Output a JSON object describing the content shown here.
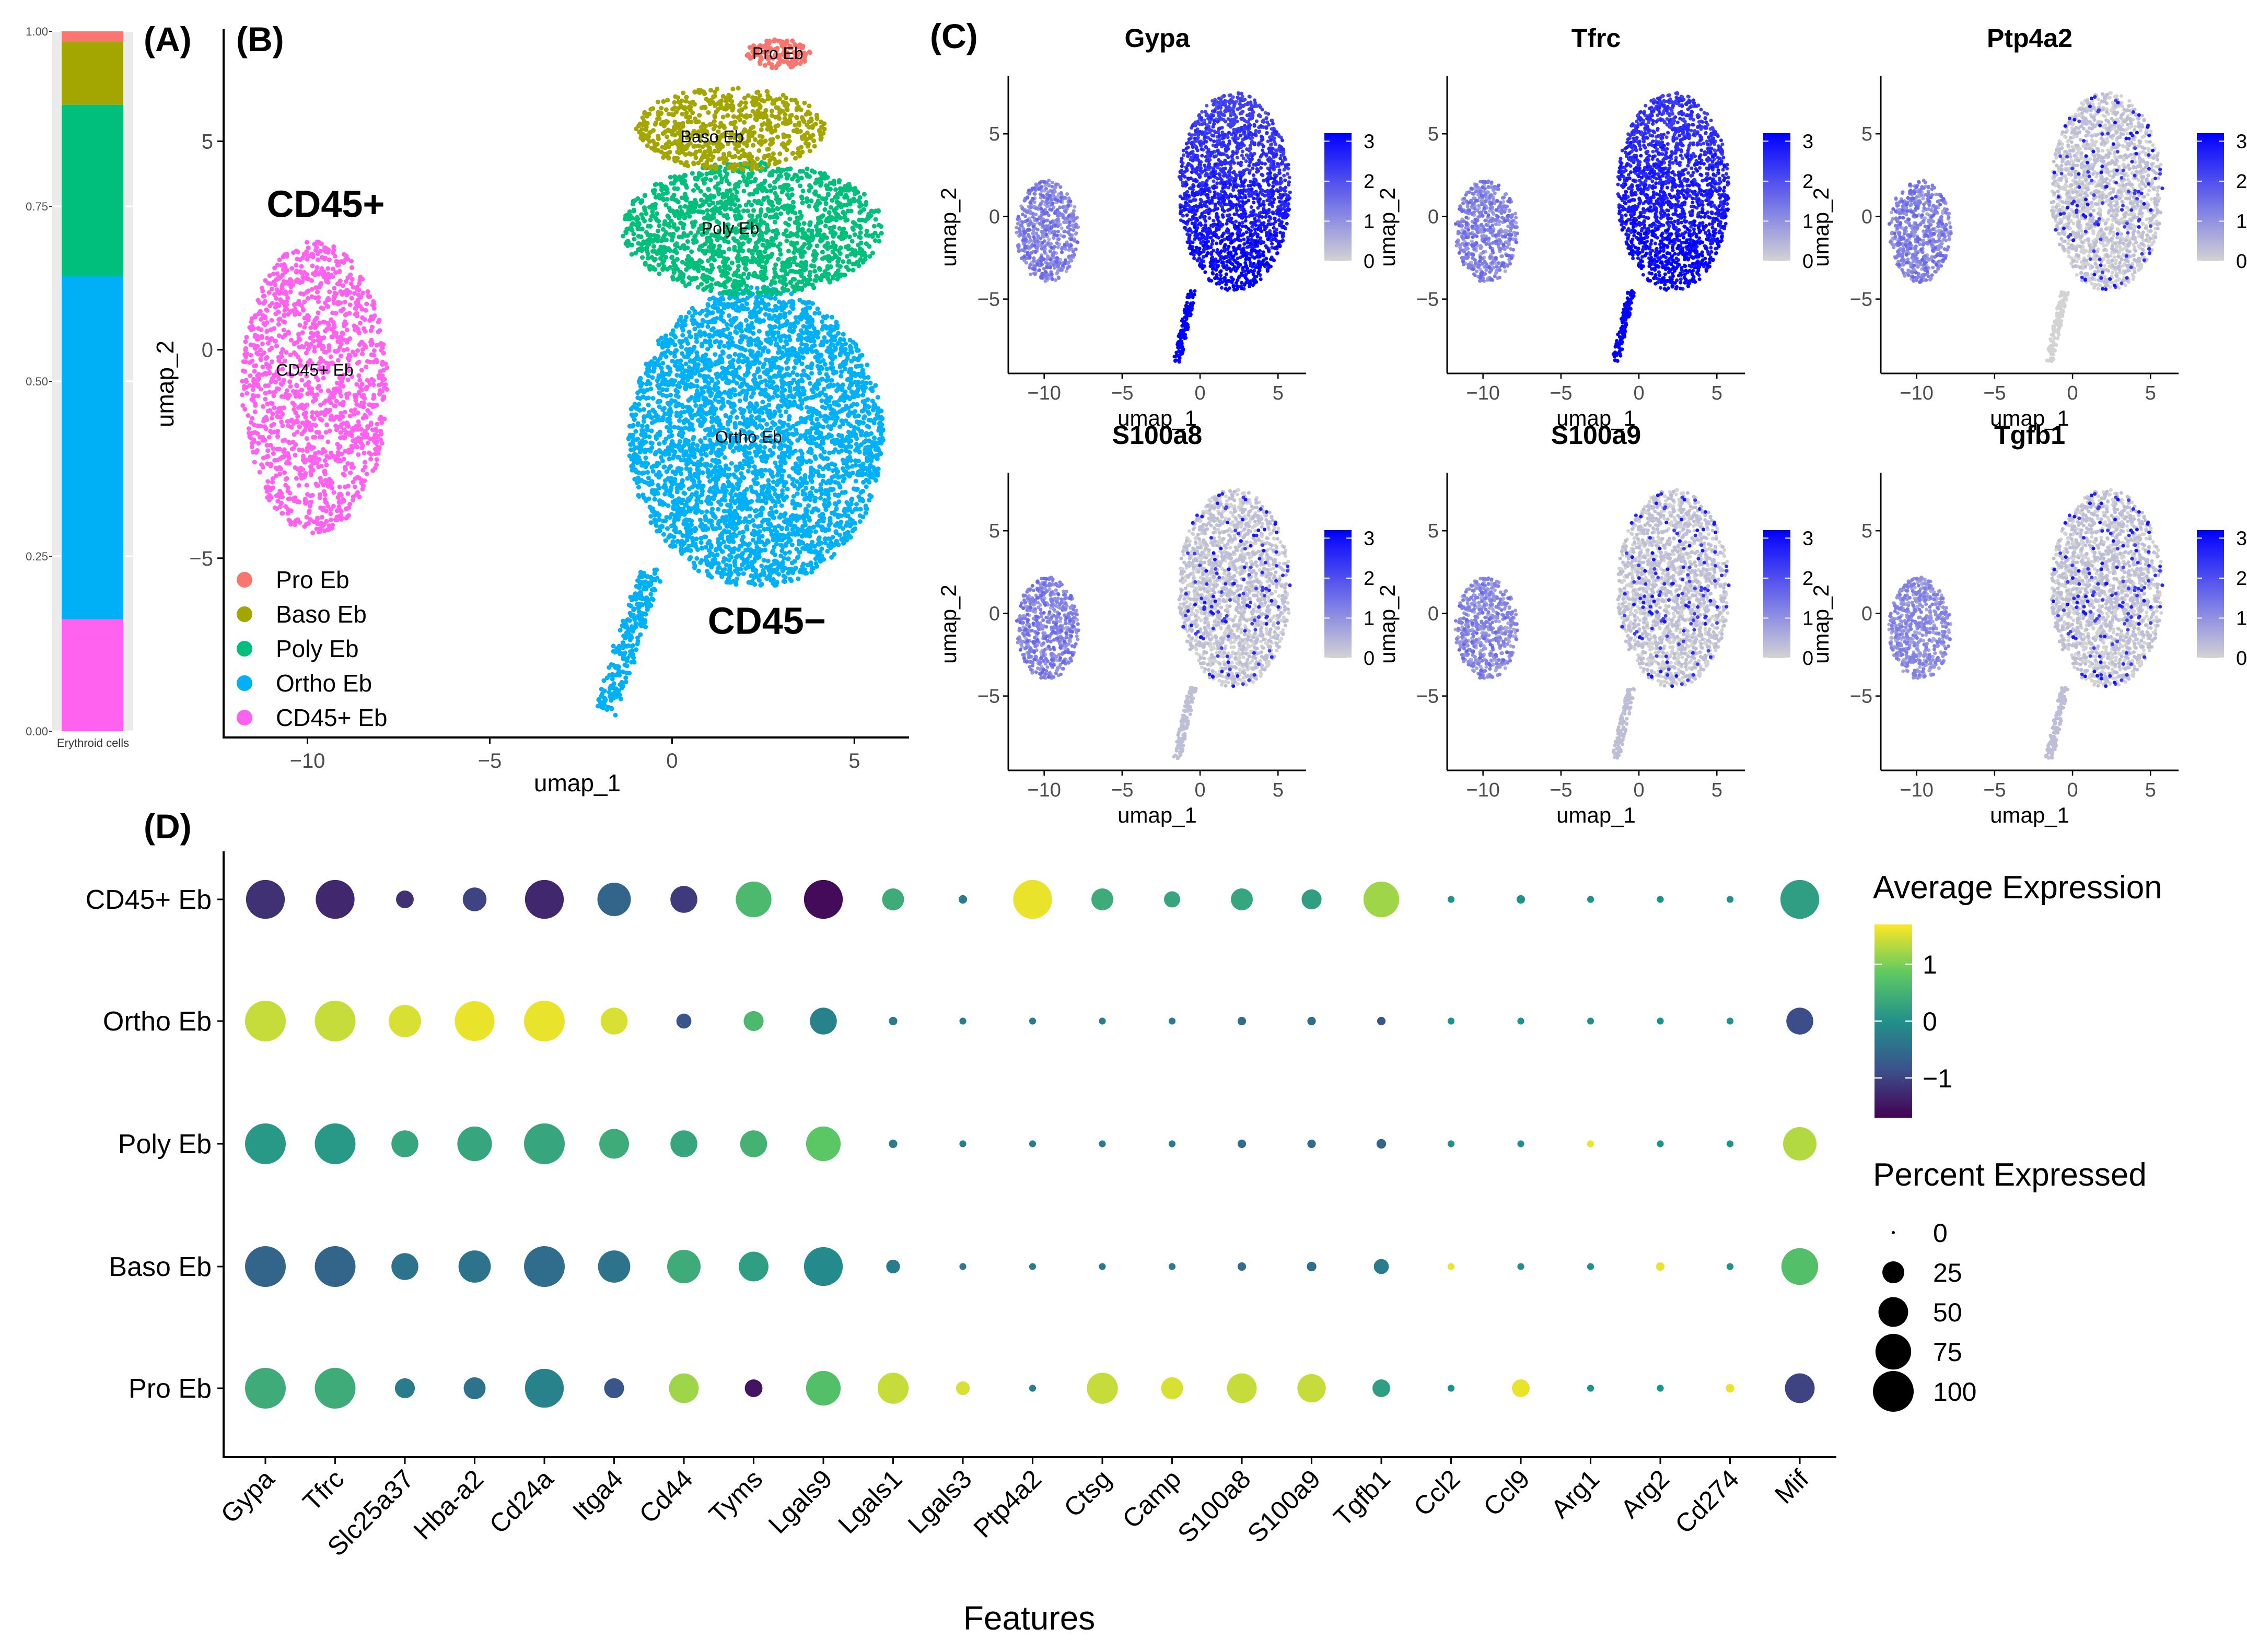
{
  "panel_labels": {
    "a": "(A)",
    "b": "(B)",
    "c": "(C)",
    "d": "(D)"
  },
  "colors": {
    "Pro Eb": "#F8766D",
    "Baso Eb": "#A3A500",
    "Poly Eb": "#00BF7D",
    "Ortho Eb": "#00B0F6",
    "CD45+ Eb": "#FF62EF",
    "feature_low": "#D3D3D3",
    "feature_high": "#0000FF"
  },
  "chart_data": [
    {
      "id": "A",
      "type": "bar",
      "stacked": true,
      "categories": [
        "Erythroid cells"
      ],
      "series": [
        {
          "name": "CD45+ Eb",
          "values": [
            0.16
          ]
        },
        {
          "name": "Ortho Eb",
          "values": [
            0.49
          ]
        },
        {
          "name": "Poly Eb",
          "values": [
            0.245
          ]
        },
        {
          "name": "Baso Eb",
          "values": [
            0.09
          ]
        },
        {
          "name": "Pro Eb",
          "values": [
            0.015
          ]
        }
      ],
      "ylim": [
        0,
        1
      ],
      "yticks": [
        "0.00",
        "0.25",
        "0.50",
        "0.75",
        "1.00"
      ],
      "yticks_values": [
        0,
        0.25,
        0.5,
        0.75,
        1.0
      ],
      "xlabel": "Erythroid cells"
    },
    {
      "id": "B",
      "type": "scatter",
      "title": "",
      "xlabel": "umap_1",
      "ylabel": "umap_2",
      "xlim": [
        -12.3,
        6.5
      ],
      "ylim": [
        -9.3,
        7.7
      ],
      "xticks": [
        -10,
        -5,
        0,
        5
      ],
      "xtick_labels": [
        "−10",
        "−5",
        "0",
        "5"
      ],
      "yticks": [
        -5,
        0,
        5
      ],
      "ytick_labels": [
        "−5",
        "0",
        "5"
      ],
      "legend": [
        "Pro Eb",
        "Baso Eb",
        "Poly Eb",
        "Ortho Eb",
        "CD45+ Eb"
      ],
      "legend_position": "bottom-left",
      "cluster_labels": [
        {
          "text": "Pro Eb",
          "x": 2.9,
          "y": 7.1
        },
        {
          "text": "Baso Eb",
          "x": 1.1,
          "y": 5.1
        },
        {
          "text": "Poly Eb",
          "x": 1.6,
          "y": 2.9
        },
        {
          "text": "Ortho Eb",
          "x": 2.1,
          "y": -2.1
        },
        {
          "text": "CD45+ Eb",
          "x": -9.8,
          "y": -0.5
        }
      ],
      "annotations": [
        {
          "text": "CD45+",
          "x": -9.5,
          "y": 3.5
        },
        {
          "text": "CD45−",
          "x": 2.6,
          "y": -6.5
        }
      ],
      "clusters": [
        {
          "name": "CD45+ Eb",
          "cx": -9.8,
          "cy": -0.9,
          "rx": 2.0,
          "ry": 3.5,
          "n": 1400
        },
        {
          "name": "Ortho Eb",
          "cx": 2.3,
          "cy": -2.1,
          "rx": 3.5,
          "ry": 3.6,
          "n": 3600
        },
        {
          "name": "Poly Eb",
          "cx": 2.2,
          "cy": 2.9,
          "rx": 3.6,
          "ry": 1.6,
          "n": 1500
        },
        {
          "name": "Baso Eb",
          "cx": 1.6,
          "cy": 5.3,
          "rx": 2.6,
          "ry": 1.0,
          "n": 650
        },
        {
          "name": "Pro Eb",
          "cx": 2.9,
          "cy": 7.1,
          "rx": 0.9,
          "ry": 0.35,
          "n": 140
        }
      ]
    },
    {
      "id": "C",
      "type": "scatter",
      "subtype": "feature_plot",
      "xlabel": "umap_1",
      "ylabel": "umap_2",
      "xlim": [
        -12.3,
        6.8
      ],
      "ylim": [
        -9.5,
        8.2
      ],
      "xticks": [
        -10,
        -5,
        0,
        5
      ],
      "xtick_labels": [
        "−10",
        "−5",
        "0",
        "5"
      ],
      "yticks": [
        -5,
        0,
        5
      ],
      "ytick_labels": [
        "−5",
        "0",
        "5"
      ],
      "colorbar_ticks": [
        0,
        1,
        2,
        3
      ],
      "colorbar_range": [
        0,
        3.2
      ],
      "features": [
        {
          "name": "Gypa",
          "left_level": 0.35,
          "right_level": 0.65,
          "bottom_boost": 0.35
        },
        {
          "name": "Tfrc",
          "left_level": 0.35,
          "right_level": 0.7,
          "bottom_boost": 0.3
        },
        {
          "name": "Ptp4a2",
          "left_level": 0.35,
          "right_level": 0.04,
          "bottom_boost": 0
        },
        {
          "name": "S100a8",
          "left_level": 0.35,
          "right_level": 0.05,
          "bottom_boost": 0
        },
        {
          "name": "S100a9",
          "left_level": 0.32,
          "right_level": 0.05,
          "bottom_boost": 0
        },
        {
          "name": "Tgfb1",
          "left_level": 0.3,
          "right_level": 0.05,
          "bottom_boost": 0
        }
      ]
    },
    {
      "id": "D",
      "type": "dot",
      "xlabel": "Features",
      "ylabel": "",
      "features": [
        "Gypa",
        "Tfrc",
        "Slc25a37",
        "Hba-a2",
        "Cd24a",
        "Itga4",
        "Cd44",
        "Tyms",
        "Lgals9",
        "Lgals1",
        "Lgals3",
        "Ptp4a2",
        "Ctsg",
        "Camp",
        "S100a8",
        "S100a9",
        "Tgfb1",
        "Ccl2",
        "Ccl9",
        "Arg1",
        "Arg2",
        "Cd274",
        "Mif"
      ],
      "groups": [
        "CD45+ Eb",
        "Ortho Eb",
        "Poly Eb",
        "Baso Eb",
        "Pro Eb"
      ],
      "avg_expression": [
        [
          -1.2,
          -1.3,
          -1.2,
          -1.0,
          -1.3,
          -0.6,
          -1.1,
          0.6,
          -1.6,
          0.4,
          -0.3,
          1.6,
          0.4,
          0.3,
          0.3,
          0.2,
          1.2,
          0,
          0,
          0,
          0,
          0,
          0.2
        ],
        [
          1.4,
          1.4,
          1.5,
          1.6,
          1.6,
          1.5,
          -0.8,
          0.6,
          -0.2,
          -0.3,
          -0.3,
          -0.3,
          -0.3,
          -0.3,
          -0.5,
          -0.5,
          -0.8,
          0,
          0,
          0,
          0,
          0,
          -0.9
        ],
        [
          0.1,
          0.1,
          0.3,
          0.3,
          0.3,
          0.4,
          0.3,
          0.5,
          0.8,
          -0.3,
          -0.3,
          -0.3,
          -0.3,
          -0.3,
          -0.5,
          -0.5,
          -0.6,
          0,
          0,
          1.6,
          0,
          0,
          1.3
        ],
        [
          -0.6,
          -0.6,
          -0.4,
          -0.4,
          -0.5,
          -0.4,
          0.4,
          0.2,
          -0.1,
          -0.3,
          -0.3,
          -0.3,
          -0.3,
          -0.3,
          -0.5,
          -0.5,
          -0.3,
          1.6,
          0,
          0,
          1.6,
          0,
          0.7
        ],
        [
          0.4,
          0.4,
          -0.3,
          -0.4,
          -0.2,
          -0.8,
          1.2,
          -1.5,
          0.7,
          1.4,
          1.5,
          -0.3,
          1.4,
          1.5,
          1.4,
          1.4,
          0.2,
          0,
          1.6,
          0,
          0,
          1.6,
          -1.0
        ]
      ],
      "pct_expressed": [
        [
          90,
          90,
          15,
          30,
          90,
          65,
          40,
          75,
          90,
          25,
          2,
          90,
          25,
          12,
          25,
          20,
          75,
          1,
          2,
          1,
          1,
          1,
          90
        ],
        [
          100,
          100,
          60,
          95,
          100,
          40,
          10,
          20,
          40,
          2,
          1,
          1,
          1,
          1,
          2,
          2,
          2,
          1,
          1,
          1,
          1,
          1,
          40
        ],
        [
          100,
          100,
          40,
          70,
          100,
          50,
          40,
          40,
          70,
          2,
          1,
          1,
          1,
          1,
          2,
          2,
          3,
          1,
          1,
          1,
          1,
          1,
          65
        ],
        [
          100,
          100,
          40,
          60,
          100,
          60,
          65,
          50,
          90,
          8,
          1,
          1,
          1,
          1,
          2,
          3,
          10,
          1,
          1,
          1,
          2,
          1,
          80
        ],
        [
          100,
          100,
          20,
          25,
          90,
          20,
          50,
          15,
          70,
          55,
          8,
          1,
          55,
          25,
          50,
          45,
          15,
          1,
          15,
          1,
          1,
          2,
          50
        ]
      ],
      "legend_color": {
        "title": "Average Expression",
        "ticks": [
          1,
          0,
          -1
        ],
        "tick_labels": [
          "1",
          "0",
          "−1"
        ],
        "range": [
          -1.7,
          1.7
        ]
      },
      "legend_size": {
        "title": "Percent Expressed",
        "values": [
          0,
          25,
          50,
          75,
          100
        ]
      }
    }
  ]
}
